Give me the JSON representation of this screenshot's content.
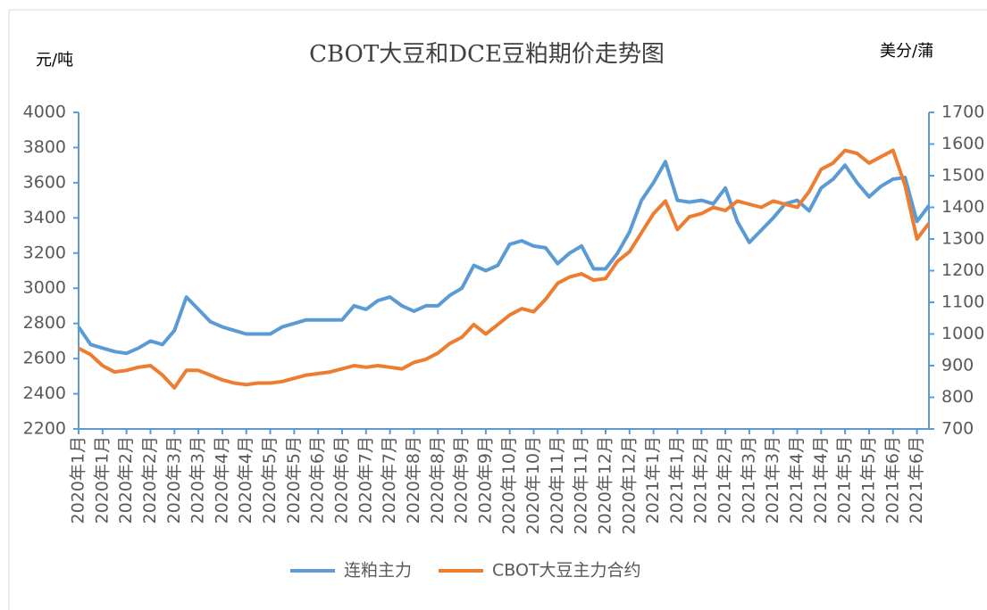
{
  "chart_data": {
    "type": "line",
    "title": "CBOT大豆和DCE豆粕期价走势图",
    "y_label": "元/吨",
    "y2_label": "美分/蒲",
    "categories": [
      "2020年1月",
      null,
      "2020年1月",
      null,
      "2020年2月",
      null,
      "2020年2月",
      null,
      "2020年3月",
      null,
      "2020年3月",
      null,
      "2020年4月",
      null,
      "2020年4月",
      null,
      "2020年5月",
      null,
      "2020年5月",
      null,
      "2020年6月",
      null,
      "2020年6月",
      null,
      "2020年7月",
      null,
      "2020年7月",
      null,
      "2020年8月",
      null,
      "2020年8月",
      null,
      "2020年9月",
      null,
      "2020年9月",
      null,
      "2020年10月",
      null,
      "2020年10月",
      null,
      "2020年11月",
      null,
      "2020年11月",
      null,
      "2020年12月",
      null,
      "2020年12月",
      null,
      "2021年1月",
      null,
      "2021年1月",
      null,
      "2021年2月",
      null,
      "2021年2月",
      null,
      "2021年3月",
      null,
      "2021年3月",
      null,
      "2021年4月",
      null,
      "2021年4月",
      null,
      "2021年5月",
      null,
      "2021年5月",
      null,
      "2021年6月",
      null,
      "2021年6月",
      null
    ],
    "series": [
      {
        "name": "连粕主力",
        "color": "#5b9bd5",
        "values": [
          2780,
          2680,
          2660,
          2640,
          2630,
          2660,
          2700,
          2680,
          2760,
          2950,
          2880,
          2810,
          2780,
          2760,
          2740,
          2740,
          2740,
          2780,
          2800,
          2820,
          2820,
          2820,
          2820,
          2900,
          2880,
          2930,
          2950,
          2900,
          2870,
          2900,
          2900,
          2960,
          3000,
          3130,
          3100,
          3130,
          3250,
          3270,
          3240,
          3230,
          3140,
          3200,
          3240,
          3110,
          3110,
          3200,
          3320,
          3500,
          3600,
          3720,
          3500,
          3490,
          3500,
          3480,
          3570,
          3380,
          3260,
          3330,
          3400,
          3480,
          3500,
          3440,
          3570,
          3620,
          3700,
          3600,
          3520,
          3580,
          3620,
          3630,
          3380,
          3470
        ]
      },
      {
        "name": "CBOT大豆主力合约",
        "color": "#ed7d31",
        "axis": "y2",
        "values": [
          955,
          935,
          900,
          880,
          885,
          895,
          900,
          870,
          830,
          885,
          885,
          870,
          855,
          845,
          840,
          845,
          845,
          850,
          860,
          870,
          875,
          880,
          890,
          900,
          895,
          900,
          895,
          890,
          910,
          920,
          940,
          970,
          990,
          1030,
          1000,
          1030,
          1060,
          1080,
          1070,
          1110,
          1160,
          1180,
          1190,
          1170,
          1175,
          1230,
          1260,
          1320,
          1380,
          1420,
          1330,
          1370,
          1380,
          1400,
          1390,
          1420,
          1410,
          1400,
          1420,
          1410,
          1400,
          1450,
          1520,
          1540,
          1580,
          1570,
          1540,
          1560,
          1580,
          1470,
          1300,
          1350
        ]
      }
    ],
    "ylim": [
      2200,
      4000
    ],
    "yticks": [
      2200,
      2400,
      2600,
      2800,
      3000,
      3200,
      3400,
      3600,
      3800,
      4000
    ],
    "y2lim": [
      700,
      1700
    ],
    "y2ticks": [
      700,
      800,
      900,
      1000,
      1100,
      1200,
      1300,
      1400,
      1500,
      1600,
      1700
    ],
    "grid": false,
    "legend": "bottom"
  }
}
